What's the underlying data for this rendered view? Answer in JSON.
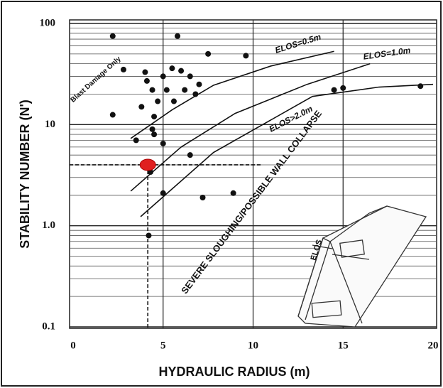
{
  "chart_data": {
    "type": "scatter",
    "xlabel": "HYDRAULIC RADIUS (m)",
    "ylabel": "STABILITY NUMBER (N')",
    "xlim": [
      0,
      20
    ],
    "ylim": [
      0.1,
      100
    ],
    "log_y": true,
    "xticks": [
      0,
      5,
      10,
      15,
      20
    ],
    "yticks": [
      0.1,
      {
        "value": 1,
        "label": "1.0"
      },
      10,
      100
    ],
    "yminorticks": [
      0.2,
      0.3,
      0.4,
      0.5,
      0.6,
      0.7,
      0.8,
      0.9,
      2,
      3,
      4,
      5,
      6,
      7,
      8,
      9,
      20,
      30,
      40,
      50,
      60,
      70,
      80,
      90
    ],
    "grid": true,
    "series": [
      {
        "color": "#111111",
        "x": [
          2.2,
          5.8,
          7.5,
          9.6,
          2.8,
          4.0,
          4.1,
          5.0,
          5.5,
          6.0,
          6.5,
          7.0,
          4.4,
          5.2,
          6.2,
          6.8,
          4.7,
          5.6,
          3.8,
          4.5,
          2.2,
          4.4,
          4.5,
          5.0,
          6.5,
          5.0,
          7.2,
          8.9,
          4.2,
          14.5,
          15.0,
          19.3,
          4.3,
          3.5
        ],
        "values": [
          75,
          75,
          50,
          48,
          35,
          33,
          27,
          30,
          36,
          34,
          30,
          25,
          22,
          22,
          22,
          20,
          17,
          17,
          15,
          12,
          12.5,
          9,
          8,
          6.5,
          5,
          2.1,
          1.9,
          2.1,
          0.8,
          22,
          23,
          24,
          3.4,
          7
        ]
      },
      {
        "color": "#e02020",
        "x": [
          4.15
        ],
        "values": [
          4.0
        ]
      }
    ],
    "curves": [
      {
        "name": "ELOS=0.5m",
        "x": [
          3.2,
          5.5,
          7.8,
          11,
          14.5
        ],
        "values": [
          7.3,
          14,
          24.5,
          38,
          53
        ]
      },
      {
        "name": "ELOS=1.0m",
        "x": [
          3.2,
          6,
          9,
          13,
          16.5
        ],
        "values": [
          2.2,
          6,
          12.9,
          25,
          40
        ]
      },
      {
        "name": "ELOS>2.0m",
        "x": [
          3.75,
          7.8,
          13.3,
          17,
          20
        ],
        "values": [
          1.23,
          5.3,
          19,
          23.5,
          25
        ]
      }
    ],
    "reference_lines": {
      "x": 4.15,
      "y": 4.0,
      "x_end": 10.5
    },
    "annotations": [
      "Blast Damage Only",
      "SEVERE SLOUGHING/POSSIBLE WALL COLLAPSE"
    ],
    "inset_label": "ELOS"
  }
}
